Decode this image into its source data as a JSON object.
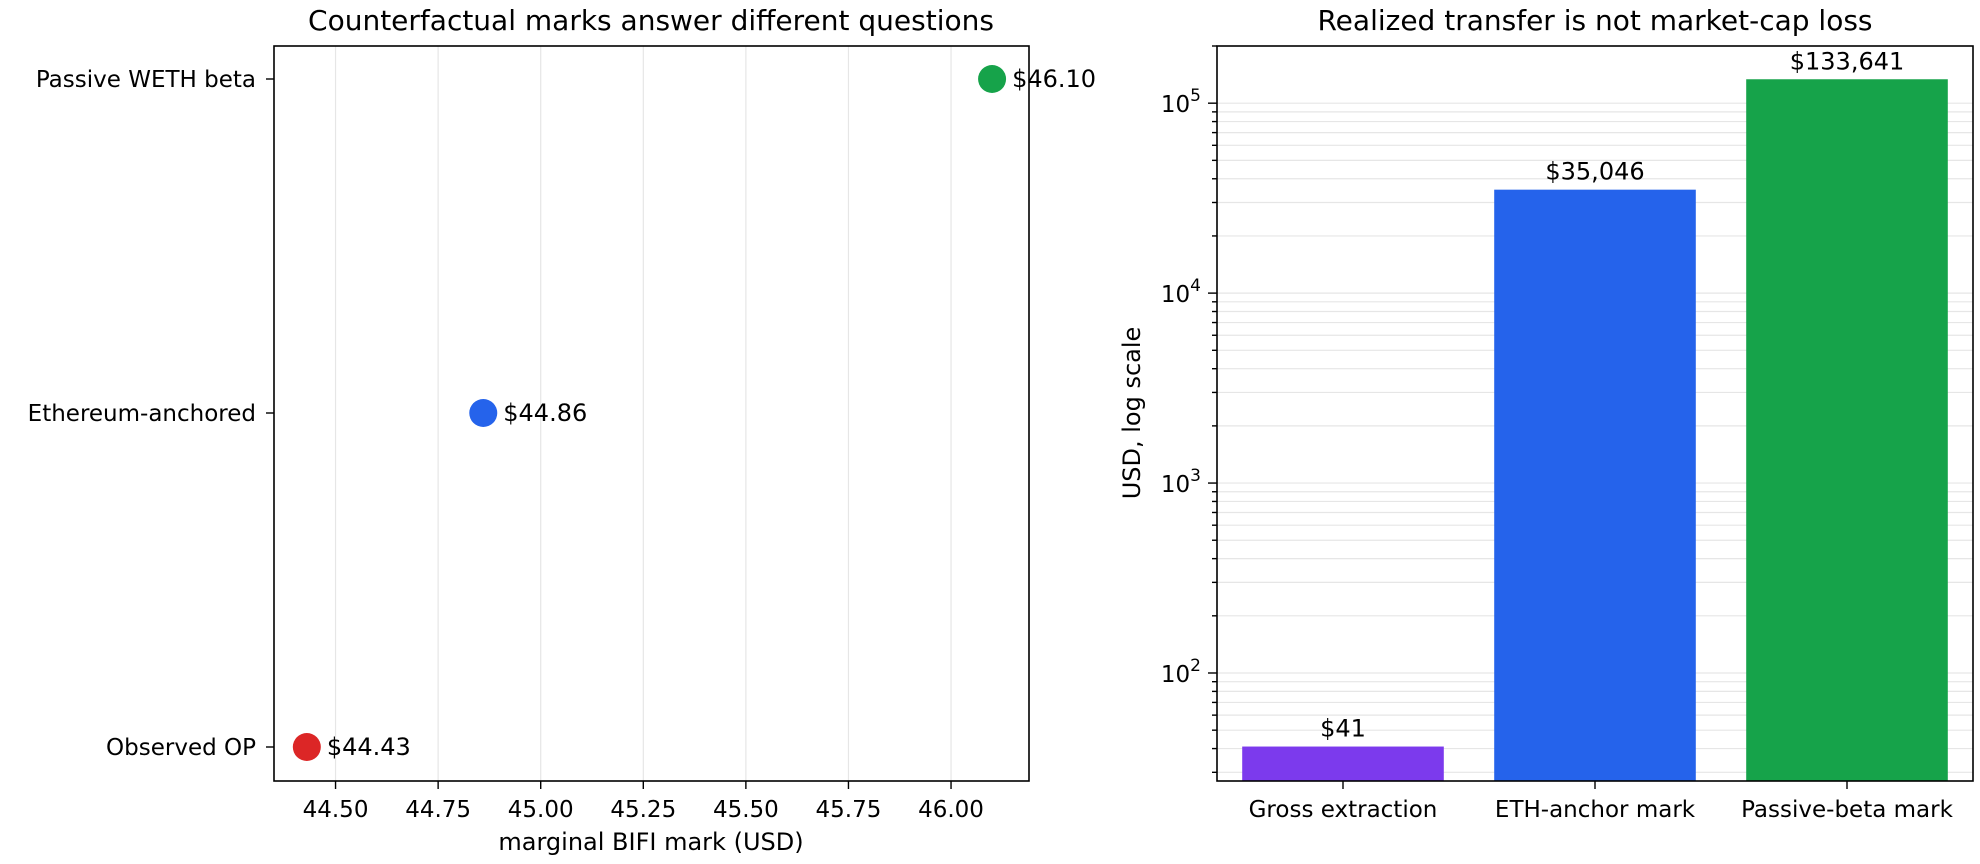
{
  "chart_data": [
    {
      "type": "scatter",
      "title": "Counterfactual marks answer different questions",
      "xlabel": "marginal BIFI mark (USD)",
      "ylabel": "",
      "xlim": [
        44.35,
        46.19
      ],
      "xticks": [
        "44.50",
        "44.75",
        "45.00",
        "45.25",
        "45.50",
        "45.75",
        "46.00"
      ],
      "grid": "x",
      "points": [
        {
          "category": "Passive WETH beta",
          "x": 46.1,
          "label": "$46.10",
          "color": "#16a34a"
        },
        {
          "category": "Ethereum-anchored",
          "x": 44.86,
          "label": "$44.86",
          "color": "#2563eb"
        },
        {
          "category": "Observed OP",
          "x": 44.43,
          "label": "$44.43",
          "color": "#dc2626"
        }
      ]
    },
    {
      "type": "bar",
      "title": "Realized transfer is not market-cap loss",
      "xlabel": "",
      "ylabel": "USD, log scale",
      "yscale": "log",
      "ylim": [
        27,
        200000
      ],
      "yticks": [
        {
          "base": "10",
          "exp": "2",
          "value": 100
        },
        {
          "base": "10",
          "exp": "3",
          "value": 1000
        },
        {
          "base": "10",
          "exp": "4",
          "value": 10000
        },
        {
          "base": "10",
          "exp": "5",
          "value": 100000
        }
      ],
      "grid": "y",
      "categories": [
        "Gross extraction",
        "ETH-anchor mark",
        "Passive-beta mark"
      ],
      "values": [
        41,
        35046,
        133641
      ],
      "labels": [
        "$41",
        "$35,046",
        "$133,641"
      ],
      "colors": [
        "#7c3aed",
        "#2563eb",
        "#16a34a"
      ]
    }
  ]
}
